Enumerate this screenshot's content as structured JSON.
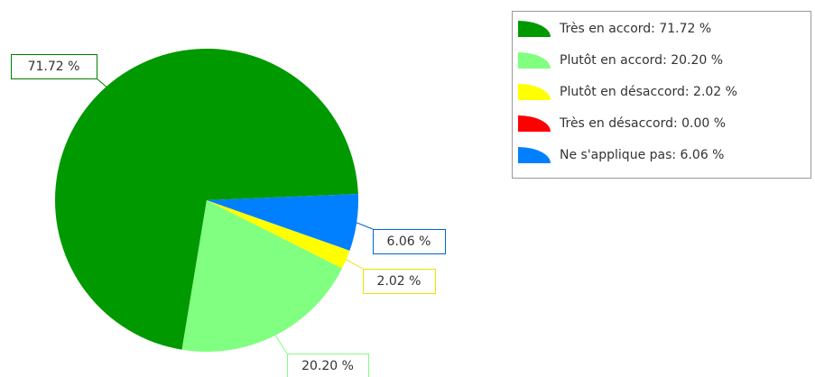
{
  "chart_data": {
    "type": "pie",
    "categories": [
      "Très en accord",
      "Plutôt en accord",
      "Plutôt en désaccord",
      "Très en désaccord",
      "Ne s'applique pas"
    ],
    "values": [
      71.72,
      20.2,
      2.02,
      0.0,
      6.06
    ],
    "value_labels": [
      "71.72 %",
      "20.20 %",
      "2.02 %",
      null,
      "6.06 %"
    ],
    "legend_labels": [
      "Très en accord: 71.72 %",
      "Plutôt en accord: 20.20 %",
      "Plutôt en désaccord: 2.02 %",
      "Très en désaccord: 0.00 %",
      "Ne s'applique pas: 6.06 %"
    ],
    "colors": [
      "#009900",
      "#80ff80",
      "#ffff00",
      "#ff0000",
      "#0080ff"
    ],
    "label_border_colors": [
      "#008000",
      "#80ff80",
      "#e6e600",
      "#ff0000",
      "#0066cc"
    ],
    "legend": "top-right"
  }
}
